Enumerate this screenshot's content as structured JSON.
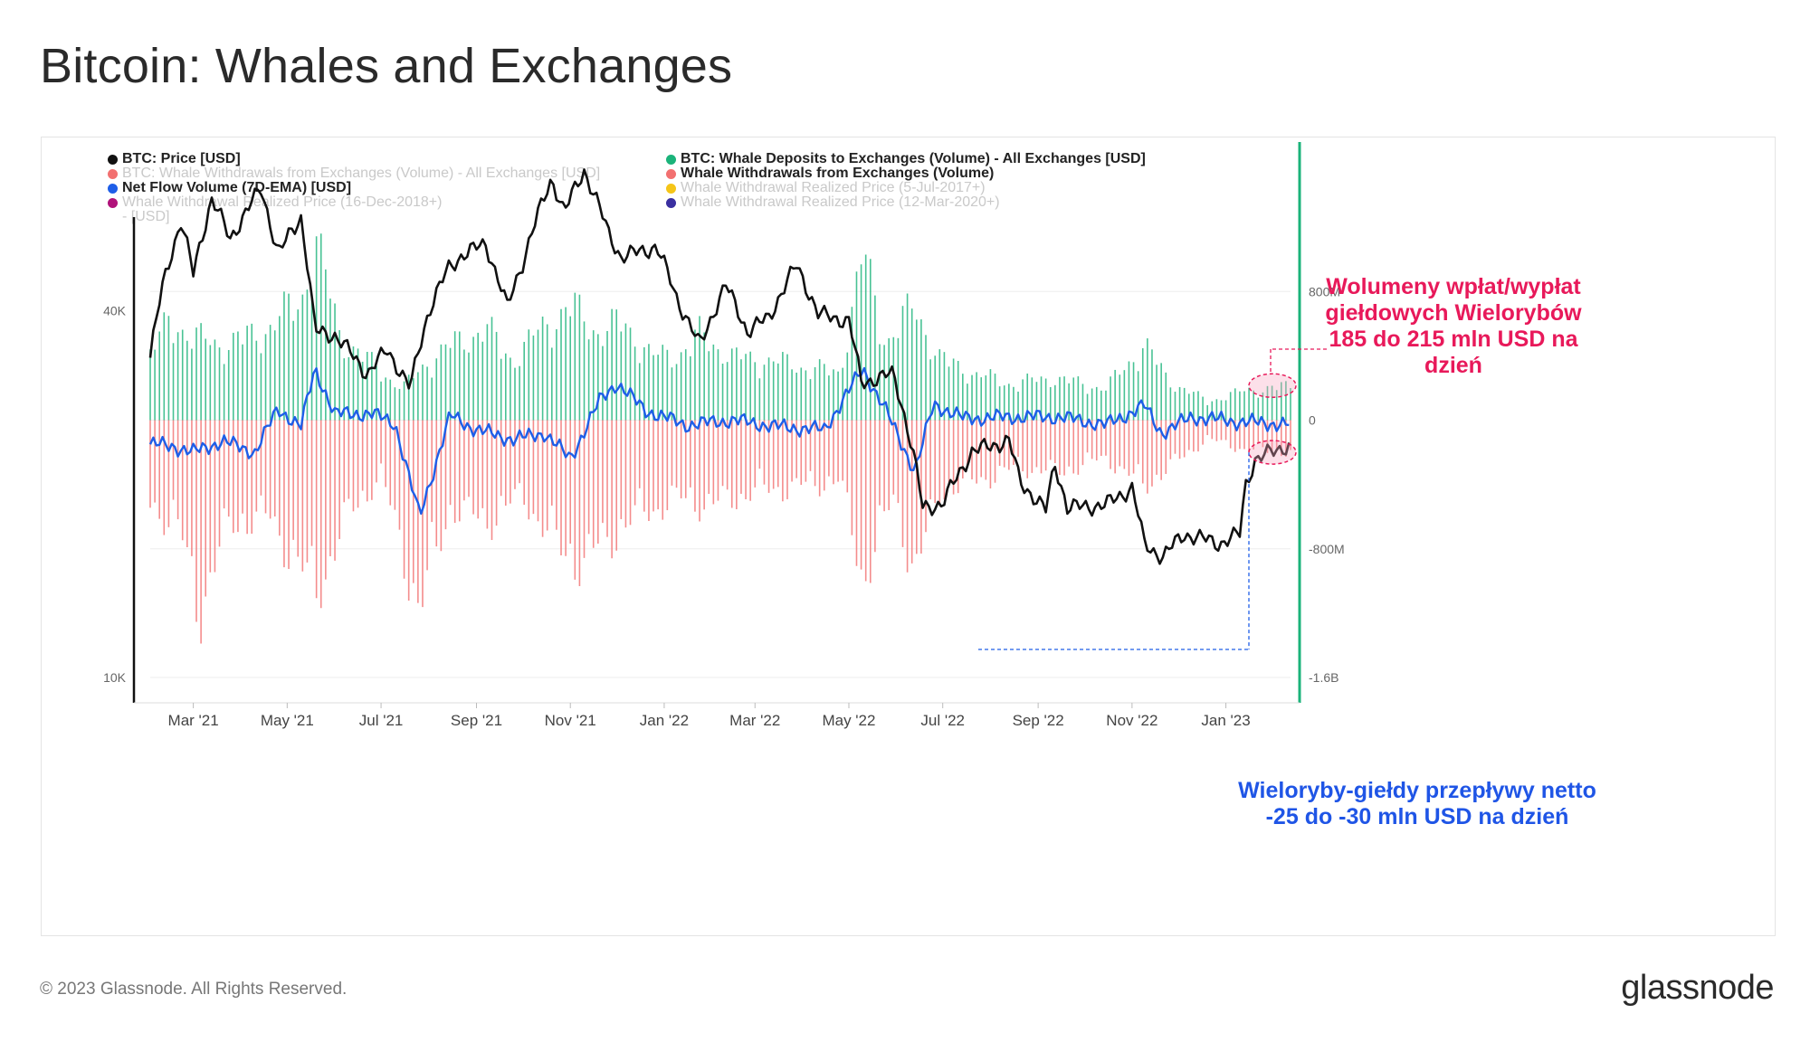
{
  "page": {
    "title": "Bitcoin: Whales and Exchanges",
    "footer": "© 2023 Glassnode. All Rights Reserved.",
    "brand": "glassnode"
  },
  "legend": {
    "items": [
      {
        "label": "BTC: Price [USD]",
        "color": "#111111",
        "active": true
      },
      {
        "label": "BTC: Whale Deposits to Exchanges (Volume) - All Exchanges [USD]",
        "color": "#1bb37a",
        "active": true
      },
      {
        "label": "BTC: Whale Withdrawals from Exchanges (Volume) - All Exchanges [USD]",
        "color": "#f27070",
        "active": false
      },
      {
        "label": "Whale Withdrawals from Exchanges (Volume)",
        "color": "#f27070",
        "active": true
      },
      {
        "label": "Net Flow Volume (7D-EMA) [USD]",
        "color": "#1e5ee8",
        "active": true
      },
      {
        "label": "Whale Withdrawal Realized Price (5-Jul-2017+)",
        "color": "#f5c518",
        "active": false
      },
      {
        "label": "Whale Withdrawal Realized Price (16-Dec-2018+)",
        "label2": "- [USD]",
        "color": "#b0127a",
        "active": false
      },
      {
        "label": "Whale Withdrawal Realized Price (12-Mar-2020+)",
        "color": "#3a2fa0",
        "active": false
      }
    ]
  },
  "annotations": {
    "volume": {
      "line1": "Wolumeny wpłat/wypłat",
      "line2": "giełdowych Wielorybów",
      "line3": "185 do 215 mln USD na dzień",
      "color": "#e8195a"
    },
    "netflow": {
      "line1": "Wieloryby-giełdy przepływy netto",
      "line2": "-25 do -30 mln USD na dzień",
      "color": "#1f55e6"
    }
  },
  "chart_data": {
    "type": "bar",
    "title": "Bitcoin: Whales and Exchanges",
    "x_start": "2021-02-01",
    "x_end": "2023-02-12",
    "x_tick_labels": [
      "Mar '21",
      "May '21",
      "Jul '21",
      "Sep '21",
      "Nov '21",
      "Jan '22",
      "Mar '22",
      "May '22",
      "Jul '22",
      "Sep '22",
      "Nov '22",
      "Jan '23"
    ],
    "x_tick_dates": [
      "2021-03-01",
      "2021-05-01",
      "2021-07-01",
      "2021-09-01",
      "2021-11-01",
      "2022-01-01",
      "2022-03-01",
      "2022-05-01",
      "2022-07-01",
      "2022-09-01",
      "2022-11-01",
      "2023-01-01"
    ],
    "left_axis": {
      "scale": "log",
      "range": [
        10000,
        70000
      ],
      "tick_labels": [
        "10K",
        "40K"
      ],
      "tick_values": [
        10000,
        40000
      ]
    },
    "right_axis": {
      "range": [
        -1600000000,
        1600000000
      ],
      "tick_labels": [
        "800M",
        "0",
        "-800M",
        "-1.6B"
      ],
      "tick_values": [
        800000000,
        0,
        -800000000,
        -1600000000
      ]
    },
    "series": [
      {
        "name": "BTC: Price [USD]",
        "axis": "left",
        "kind": "line",
        "points": [
          [
            "2021-02-01",
            33500
          ],
          [
            "2021-02-10",
            45000
          ],
          [
            "2021-02-21",
            56000
          ],
          [
            "2021-03-01",
            46000
          ],
          [
            "2021-03-13",
            61000
          ],
          [
            "2021-03-25",
            52500
          ],
          [
            "2021-04-14",
            63500
          ],
          [
            "2021-04-25",
            49500
          ],
          [
            "2021-05-10",
            57000
          ],
          [
            "2021-05-19",
            37000
          ],
          [
            "2021-06-01",
            36500
          ],
          [
            "2021-06-22",
            31500
          ],
          [
            "2021-07-05",
            34500
          ],
          [
            "2021-07-20",
            29800
          ],
          [
            "2021-08-01",
            40000
          ],
          [
            "2021-08-14",
            47000
          ],
          [
            "2021-08-23",
            49500
          ],
          [
            "2021-09-07",
            51500
          ],
          [
            "2021-09-21",
            40500
          ],
          [
            "2021-10-01",
            48000
          ],
          [
            "2021-10-20",
            66000
          ],
          [
            "2021-10-28",
            58000
          ],
          [
            "2021-11-10",
            68000
          ],
          [
            "2021-11-26",
            53500
          ],
          [
            "2021-12-04",
            49000
          ],
          [
            "2021-12-27",
            51000
          ],
          [
            "2022-01-10",
            41500
          ],
          [
            "2022-01-24",
            35000
          ],
          [
            "2022-02-10",
            44000
          ],
          [
            "2022-02-24",
            37000
          ],
          [
            "2022-03-10",
            39000
          ],
          [
            "2022-03-28",
            47500
          ],
          [
            "2022-04-11",
            39500
          ],
          [
            "2022-05-01",
            38500
          ],
          [
            "2022-05-09",
            30500
          ],
          [
            "2022-05-30",
            31500
          ],
          [
            "2022-06-13",
            22500
          ],
          [
            "2022-06-18",
            19000
          ],
          [
            "2022-07-01",
            19300
          ],
          [
            "2022-07-20",
            23500
          ],
          [
            "2022-08-13",
            24500
          ],
          [
            "2022-08-20",
            21000
          ],
          [
            "2022-09-06",
            18800
          ],
          [
            "2022-09-12",
            22400
          ],
          [
            "2022-09-20",
            19000
          ],
          [
            "2022-10-15",
            19200
          ],
          [
            "2022-11-01",
            20500
          ],
          [
            "2022-11-09",
            16500
          ],
          [
            "2022-11-21",
            15800
          ],
          [
            "2022-12-05",
            17200
          ],
          [
            "2022-12-28",
            16600
          ],
          [
            "2023-01-10",
            17200
          ],
          [
            "2023-01-14",
            20800
          ],
          [
            "2023-01-20",
            22800
          ],
          [
            "2023-02-01",
            23500
          ],
          [
            "2023-02-12",
            24200
          ]
        ]
      },
      {
        "name": "BTC: Whale Deposits to Exchanges (Volume) - All Exchanges [USD]",
        "axis": "right",
        "kind": "bar",
        "points": [
          [
            "2021-02-01",
            420000000
          ],
          [
            "2021-02-15",
            650000000
          ],
          [
            "2021-03-01",
            520000000
          ],
          [
            "2021-03-20",
            480000000
          ],
          [
            "2021-04-15",
            560000000
          ],
          [
            "2021-05-10",
            760000000
          ],
          [
            "2021-05-19",
            1150000000
          ],
          [
            "2021-06-05",
            520000000
          ],
          [
            "2021-06-25",
            360000000
          ],
          [
            "2021-07-15",
            200000000
          ],
          [
            "2021-08-01",
            380000000
          ],
          [
            "2021-08-20",
            500000000
          ],
          [
            "2021-09-07",
            580000000
          ],
          [
            "2021-09-25",
            380000000
          ],
          [
            "2021-10-15",
            600000000
          ],
          [
            "2021-11-01",
            720000000
          ],
          [
            "2021-11-20",
            560000000
          ],
          [
            "2021-12-05",
            620000000
          ],
          [
            "2021-12-25",
            400000000
          ],
          [
            "2022-01-10",
            420000000
          ],
          [
            "2022-01-24",
            540000000
          ],
          [
            "2022-02-15",
            400000000
          ],
          [
            "2022-03-10",
            380000000
          ],
          [
            "2022-04-01",
            340000000
          ],
          [
            "2022-04-25",
            300000000
          ],
          [
            "2022-05-10",
            1050000000
          ],
          [
            "2022-05-25",
            500000000
          ],
          [
            "2022-06-13",
            720000000
          ],
          [
            "2022-06-28",
            400000000
          ],
          [
            "2022-07-20",
            300000000
          ],
          [
            "2022-08-15",
            230000000
          ],
          [
            "2022-09-10",
            270000000
          ],
          [
            "2022-10-15",
            200000000
          ],
          [
            "2022-11-09",
            480000000
          ],
          [
            "2022-11-25",
            250000000
          ],
          [
            "2022-12-20",
            120000000
          ],
          [
            "2023-01-15",
            190000000
          ],
          [
            "2023-02-12",
            215000000
          ]
        ]
      },
      {
        "name": "Whale Withdrawals from Exchanges (Volume)",
        "axis": "right",
        "kind": "bar",
        "points": [
          [
            "2021-02-01",
            -520000000
          ],
          [
            "2021-02-20",
            -700000000
          ],
          [
            "2021-03-05",
            -1200000000
          ],
          [
            "2021-03-25",
            -650000000
          ],
          [
            "2021-04-20",
            -620000000
          ],
          [
            "2021-05-19",
            -1100000000
          ],
          [
            "2021-06-10",
            -600000000
          ],
          [
            "2021-07-01",
            -350000000
          ],
          [
            "2021-07-26",
            -1200000000
          ],
          [
            "2021-08-15",
            -550000000
          ],
          [
            "2021-09-07",
            -650000000
          ],
          [
            "2021-10-01",
            -480000000
          ],
          [
            "2021-10-25",
            -820000000
          ],
          [
            "2021-11-10",
            -900000000
          ],
          [
            "2021-11-25",
            -760000000
          ],
          [
            "2021-12-15",
            -600000000
          ],
          [
            "2022-01-10",
            -500000000
          ],
          [
            "2022-02-01",
            -540000000
          ],
          [
            "2022-03-01",
            -450000000
          ],
          [
            "2022-04-01",
            -420000000
          ],
          [
            "2022-04-25",
            -380000000
          ],
          [
            "2022-05-10",
            -1000000000
          ],
          [
            "2022-05-30",
            -500000000
          ],
          [
            "2022-06-13",
            -960000000
          ],
          [
            "2022-06-30",
            -450000000
          ],
          [
            "2022-07-25",
            -380000000
          ],
          [
            "2022-08-20",
            -300000000
          ],
          [
            "2022-09-15",
            -330000000
          ],
          [
            "2022-10-15",
            -240000000
          ],
          [
            "2022-11-09",
            -420000000
          ],
          [
            "2022-11-25",
            -300000000
          ],
          [
            "2022-12-20",
            -120000000
          ],
          [
            "2023-01-15",
            -190000000
          ],
          [
            "2023-02-12",
            -200000000
          ]
        ]
      },
      {
        "name": "Net Flow Volume (7D-EMA) [USD]",
        "axis": "right",
        "kind": "line",
        "points": [
          [
            "2021-02-01",
            -150000000
          ],
          [
            "2021-02-15",
            -160000000
          ],
          [
            "2021-03-01",
            -200000000
          ],
          [
            "2021-03-20",
            -130000000
          ],
          [
            "2021-04-10",
            -200000000
          ],
          [
            "2021-04-25",
            70000000
          ],
          [
            "2021-05-10",
            -40000000
          ],
          [
            "2021-05-19",
            320000000
          ],
          [
            "2021-06-01",
            40000000
          ],
          [
            "2021-06-25",
            40000000
          ],
          [
            "2021-07-10",
            -20000000
          ],
          [
            "2021-07-26",
            -600000000
          ],
          [
            "2021-08-15",
            30000000
          ],
          [
            "2021-09-01",
            -60000000
          ],
          [
            "2021-09-25",
            -120000000
          ],
          [
            "2021-10-15",
            -80000000
          ],
          [
            "2021-11-01",
            -240000000
          ],
          [
            "2021-11-20",
            120000000
          ],
          [
            "2021-12-01",
            230000000
          ],
          [
            "2021-12-20",
            60000000
          ],
          [
            "2022-01-15",
            -30000000
          ],
          [
            "2022-02-15",
            0
          ],
          [
            "2022-03-15",
            -40000000
          ],
          [
            "2022-04-15",
            -60000000
          ],
          [
            "2022-05-10",
            320000000
          ],
          [
            "2022-05-25",
            60000000
          ],
          [
            "2022-06-13",
            -320000000
          ],
          [
            "2022-06-25",
            100000000
          ],
          [
            "2022-07-15",
            10000000
          ],
          [
            "2022-08-15",
            20000000
          ],
          [
            "2022-09-15",
            20000000
          ],
          [
            "2022-10-15",
            -30000000
          ],
          [
            "2022-11-09",
            90000000
          ],
          [
            "2022-11-20",
            -80000000
          ],
          [
            "2022-12-10",
            20000000
          ],
          [
            "2023-01-10",
            -10000000
          ],
          [
            "2023-02-12",
            -27000000
          ]
        ]
      }
    ]
  }
}
